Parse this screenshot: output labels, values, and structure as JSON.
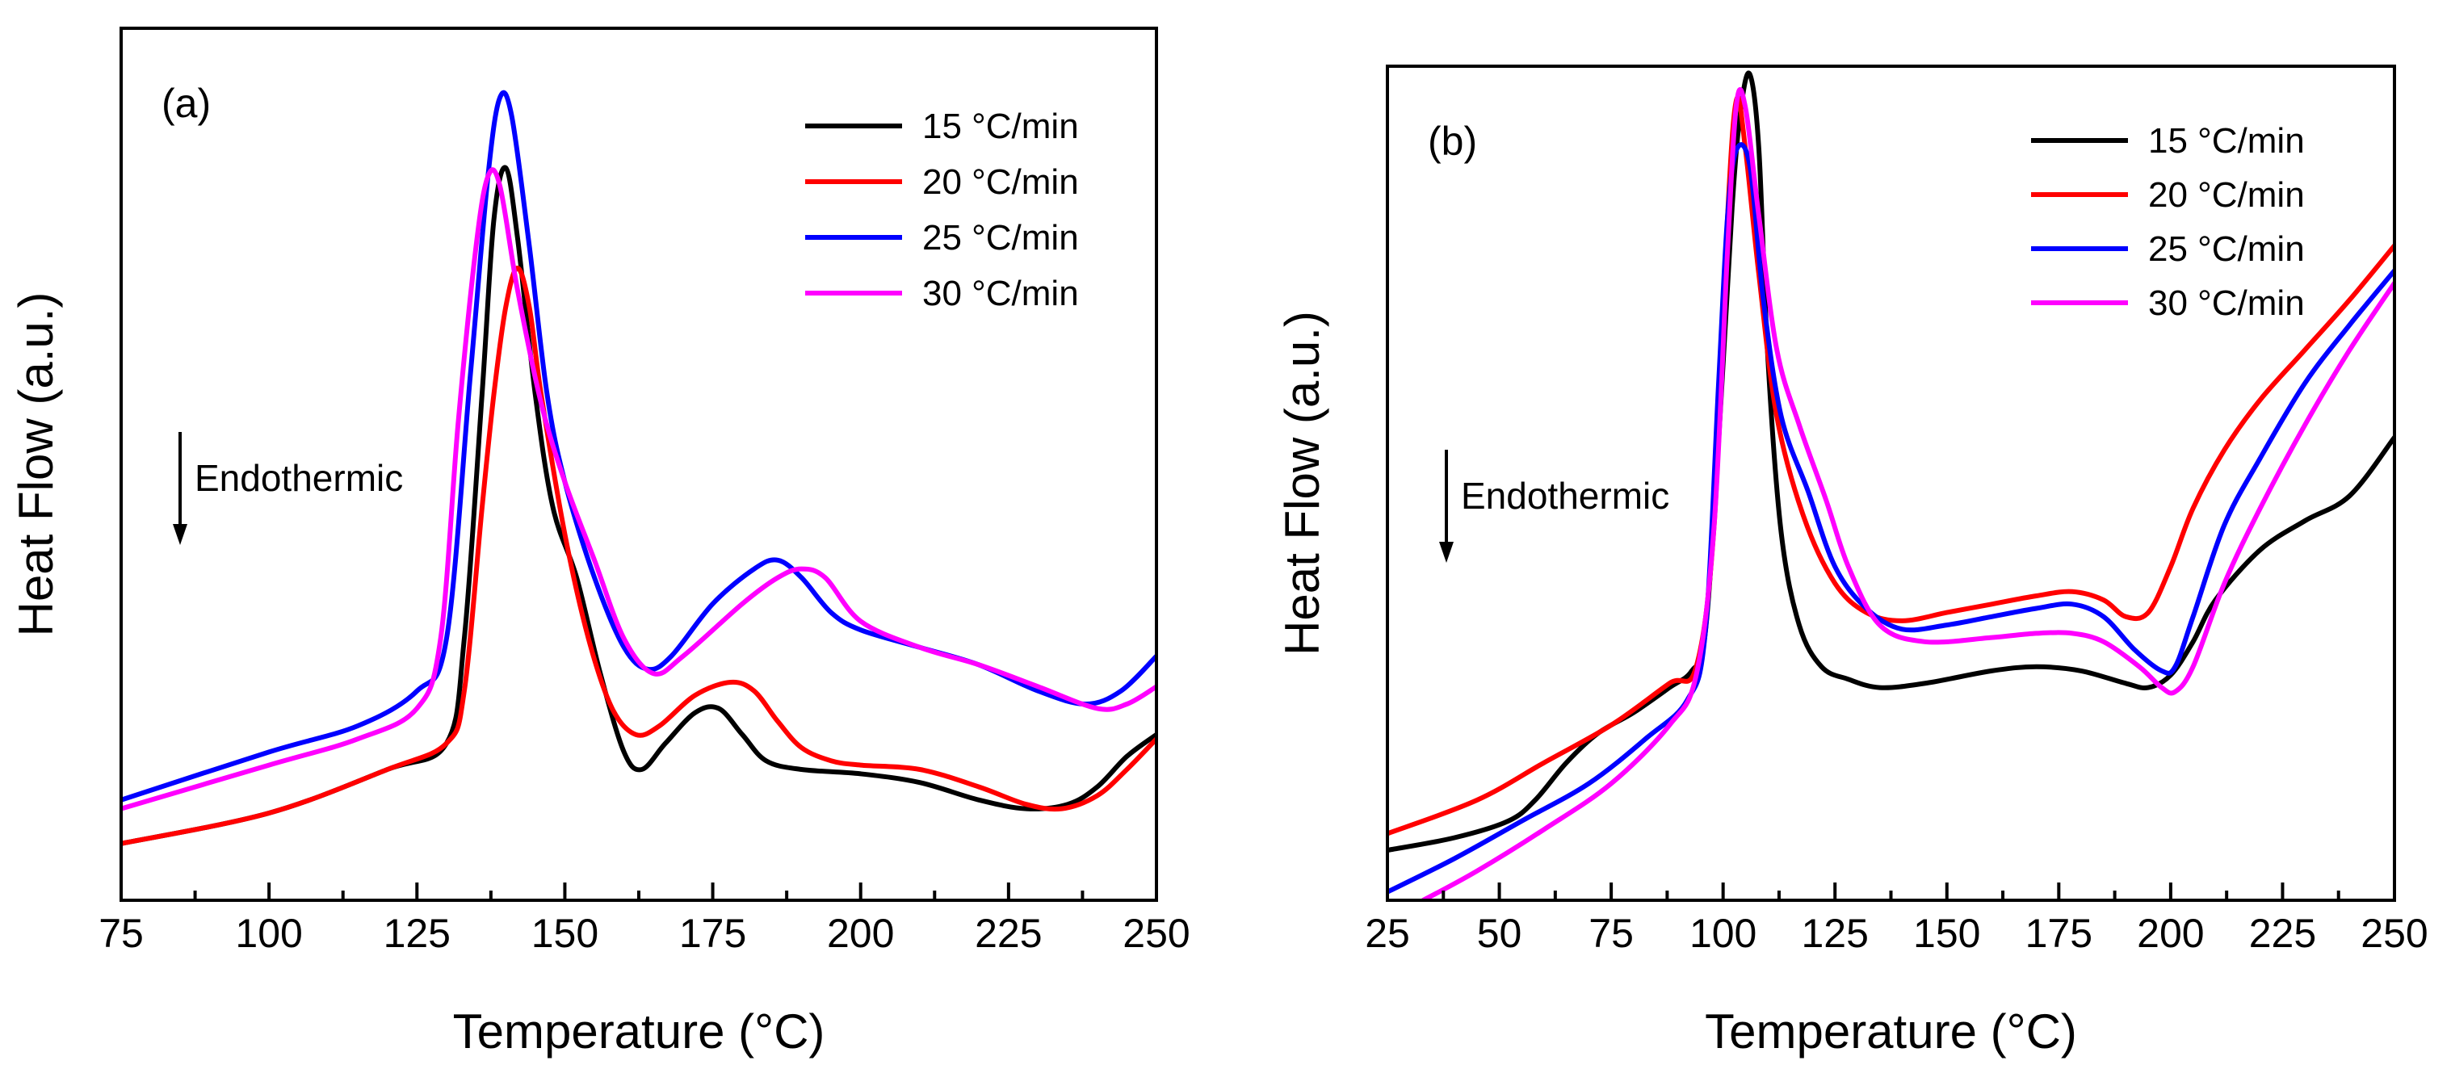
{
  "chart_data": [
    {
      "type": "line",
      "panel": "(a)",
      "xlabel": "Temperature (°C)",
      "ylabel": "Heat Flow (a.u.)",
      "xlim": [
        75,
        250
      ],
      "ylim": [
        0,
        100
      ],
      "xticks": [
        75,
        100,
        125,
        150,
        175,
        200,
        225,
        250
      ],
      "xtick_labels": [
        "75",
        "100",
        "125",
        "150",
        "175",
        "200",
        "225",
        "250"
      ],
      "yticks_shown": false,
      "grid": false,
      "legend_position": "top-right",
      "annotation": {
        "text": "Endothermic",
        "arrow": "down"
      },
      "series": [
        {
          "name": "15 °C/min",
          "color": "#000000",
          "points": [
            [
              75,
              6.5
            ],
            [
              100,
              10
            ],
            [
              120,
              15
            ],
            [
              130,
              18
            ],
            [
              133,
              30
            ],
            [
              136,
              58
            ],
            [
              138,
              78
            ],
            [
              140,
              84
            ],
            [
              142,
              76
            ],
            [
              145,
              58
            ],
            [
              148,
              45
            ],
            [
              152,
              37
            ],
            [
              156,
              26
            ],
            [
              160,
              17
            ],
            [
              163,
              15
            ],
            [
              167,
              18
            ],
            [
              172,
              21.5
            ],
            [
              176,
              22
            ],
            [
              180,
              19
            ],
            [
              184,
              16
            ],
            [
              190,
              15
            ],
            [
              200,
              14.5
            ],
            [
              210,
              13.5
            ],
            [
              220,
              11.5
            ],
            [
              228,
              10.5
            ],
            [
              235,
              11
            ],
            [
              240,
              13
            ],
            [
              245,
              16.5
            ],
            [
              250,
              19
            ]
          ]
        },
        {
          "name": "20 °C/min",
          "color": "#ff0000",
          "points": [
            [
              75,
              6.5
            ],
            [
              100,
              10
            ],
            [
              120,
              15
            ],
            [
              130,
              18
            ],
            [
              133,
              24
            ],
            [
              136,
              45
            ],
            [
              138,
              58
            ],
            [
              140,
              68
            ],
            [
              142,
              72.5
            ],
            [
              144,
              68
            ],
            [
              146,
              58
            ],
            [
              150,
              42
            ],
            [
              154,
              30
            ],
            [
              158,
              22
            ],
            [
              162,
              19
            ],
            [
              166,
              20
            ],
            [
              172,
              23.5
            ],
            [
              178,
              25
            ],
            [
              182,
              24
            ],
            [
              186,
              20.5
            ],
            [
              190,
              17.5
            ],
            [
              195,
              16
            ],
            [
              200,
              15.5
            ],
            [
              210,
              15
            ],
            [
              220,
              13
            ],
            [
              228,
              11
            ],
            [
              234,
              10.5
            ],
            [
              240,
              12
            ],
            [
              245,
              15
            ],
            [
              250,
              18.5
            ]
          ]
        },
        {
          "name": "25 °C/min",
          "color": "#0000ff",
          "points": [
            [
              75,
              11.5
            ],
            [
              100,
              17
            ],
            [
              115,
              20
            ],
            [
              125,
              24
            ],
            [
              130,
              30
            ],
            [
              134,
              60
            ],
            [
              137,
              83
            ],
            [
              139,
              92
            ],
            [
              141,
              90
            ],
            [
              144,
              75
            ],
            [
              147,
              58
            ],
            [
              150,
              48
            ],
            [
              155,
              37
            ],
            [
              160,
              29
            ],
            [
              164,
              26.5
            ],
            [
              168,
              28
            ],
            [
              175,
              34
            ],
            [
              182,
              38
            ],
            [
              186,
              39
            ],
            [
              190,
              37
            ],
            [
              195,
              33
            ],
            [
              200,
              31
            ],
            [
              210,
              29
            ],
            [
              220,
              27
            ],
            [
              230,
              24
            ],
            [
              238,
              22.5
            ],
            [
              244,
              24
            ],
            [
              250,
              28
            ]
          ]
        },
        {
          "name": "30 °C/min",
          "color": "#ff00ff",
          "points": [
            [
              75,
              10.5
            ],
            [
              100,
              15.5
            ],
            [
              115,
              18.5
            ],
            [
              125,
              22
            ],
            [
              129,
              30
            ],
            [
              132,
              55
            ],
            [
              135,
              75
            ],
            [
              137,
              83
            ],
            [
              139,
              82
            ],
            [
              142,
              70
            ],
            [
              146,
              57
            ],
            [
              150,
              48
            ],
            [
              155,
              39
            ],
            [
              160,
              30
            ],
            [
              165,
              26
            ],
            [
              170,
              28
            ],
            [
              180,
              34
            ],
            [
              186,
              37
            ],
            [
              190,
              38
            ],
            [
              194,
              37
            ],
            [
              200,
              32
            ],
            [
              210,
              29
            ],
            [
              220,
              27
            ],
            [
              230,
              24.5
            ],
            [
              240,
              22
            ],
            [
              245,
              22.5
            ],
            [
              250,
              24.5
            ]
          ]
        }
      ]
    },
    {
      "type": "line",
      "panel": "(b)",
      "xlabel": "Temperature (°C)",
      "ylabel": "Heat Flow (a.u.)",
      "xlim": [
        25,
        250
      ],
      "ylim": [
        0,
        100
      ],
      "xticks": [
        25,
        50,
        75,
        100,
        125,
        150,
        175,
        200,
        225,
        250
      ],
      "xtick_labels": [
        "25",
        "50",
        "75",
        "100",
        "125",
        "150",
        "175",
        "200",
        "225",
        "250"
      ],
      "yticks_shown": false,
      "grid": false,
      "legend_position": "top-right",
      "annotation": {
        "text": "Endothermic",
        "arrow": "down"
      },
      "series": [
        {
          "name": "15 °C/min",
          "color": "#000000",
          "points": [
            [
              25,
              6
            ],
            [
              40,
              7.5
            ],
            [
              52,
              9.5
            ],
            [
              58,
              12
            ],
            [
              65,
              16.5
            ],
            [
              72,
              20
            ],
            [
              80,
              22.5
            ],
            [
              88,
              25.5
            ],
            [
              93,
              27.5
            ],
            [
              96,
              32
            ],
            [
              99,
              55
            ],
            [
              102,
              83
            ],
            [
              104,
              95
            ],
            [
              106,
              99
            ],
            [
              108,
              90
            ],
            [
              110,
              65
            ],
            [
              113,
              44
            ],
            [
              117,
              33
            ],
            [
              122,
              28
            ],
            [
              128,
              26.5
            ],
            [
              135,
              25.5
            ],
            [
              145,
              26
            ],
            [
              160,
              27.5
            ],
            [
              170,
              28
            ],
            [
              180,
              27.5
            ],
            [
              190,
              26
            ],
            [
              195,
              25.5
            ],
            [
              200,
              27
            ],
            [
              205,
              31
            ],
            [
              210,
              36
            ],
            [
              220,
              42
            ],
            [
              230,
              45.5
            ],
            [
              240,
              48.5
            ],
            [
              250,
              55.5
            ]
          ]
        },
        {
          "name": "20 °C/min",
          "color": "#ff0000",
          "points": [
            [
              25,
              8
            ],
            [
              45,
              12
            ],
            [
              60,
              16.5
            ],
            [
              75,
              21
            ],
            [
              88,
              26
            ],
            [
              94,
              28
            ],
            [
              98,
              45
            ],
            [
              101,
              82
            ],
            [
              103,
              96
            ],
            [
              105,
              90
            ],
            [
              108,
              75
            ],
            [
              112,
              58
            ],
            [
              118,
              46
            ],
            [
              125,
              38
            ],
            [
              132,
              34.5
            ],
            [
              140,
              33.5
            ],
            [
              150,
              34.5
            ],
            [
              160,
              35.5
            ],
            [
              170,
              36.5
            ],
            [
              178,
              37
            ],
            [
              185,
              36
            ],
            [
              190,
              34
            ],
            [
              195,
              34.5
            ],
            [
              200,
              40
            ],
            [
              205,
              47
            ],
            [
              212,
              54
            ],
            [
              220,
              60
            ],
            [
              230,
              66
            ],
            [
              240,
              72
            ],
            [
              250,
              78.5
            ]
          ]
        },
        {
          "name": "25 °C/min",
          "color": "#0000ff",
          "points": [
            [
              25,
              1
            ],
            [
              40,
              5
            ],
            [
              55,
              9.5
            ],
            [
              70,
              14
            ],
            [
              83,
              19.5
            ],
            [
              92,
              24
            ],
            [
              96,
              32
            ],
            [
              99,
              62
            ],
            [
              101,
              82
            ],
            [
              103,
              90
            ],
            [
              106,
              88
            ],
            [
              109,
              72
            ],
            [
              113,
              58
            ],
            [
              119,
              49
            ],
            [
              125,
              40
            ],
            [
              132,
              35
            ],
            [
              140,
              32.5
            ],
            [
              150,
              33
            ],
            [
              160,
              34
            ],
            [
              170,
              35
            ],
            [
              178,
              35.5
            ],
            [
              185,
              34
            ],
            [
              192,
              30
            ],
            [
              198,
              27.5
            ],
            [
              201,
              28
            ],
            [
              205,
              34
            ],
            [
              212,
              45
            ],
            [
              220,
              53
            ],
            [
              230,
              62
            ],
            [
              240,
              69
            ],
            [
              250,
              75.5
            ]
          ]
        },
        {
          "name": "30 °C/min",
          "color": "#ff00ff",
          "points": [
            [
              33,
              0
            ],
            [
              45,
              3.5
            ],
            [
              60,
              8.5
            ],
            [
              75,
              14
            ],
            [
              88,
              21
            ],
            [
              94,
              27
            ],
            [
              98,
              45
            ],
            [
              101,
              78
            ],
            [
              103,
              95.5
            ],
            [
              105,
              95
            ],
            [
              108,
              82
            ],
            [
              112,
              66
            ],
            [
              117,
              57
            ],
            [
              123,
              48
            ],
            [
              128,
              40
            ],
            [
              135,
              33
            ],
            [
              145,
              31
            ],
            [
              160,
              31.5
            ],
            [
              170,
              32
            ],
            [
              178,
              32
            ],
            [
              185,
              31
            ],
            [
              193,
              28
            ],
            [
              198,
              25.5
            ],
            [
              201,
              25
            ],
            [
              205,
              28
            ],
            [
              212,
              38
            ],
            [
              220,
              47
            ],
            [
              230,
              57
            ],
            [
              240,
              66
            ],
            [
              250,
              74
            ]
          ]
        }
      ]
    }
  ]
}
